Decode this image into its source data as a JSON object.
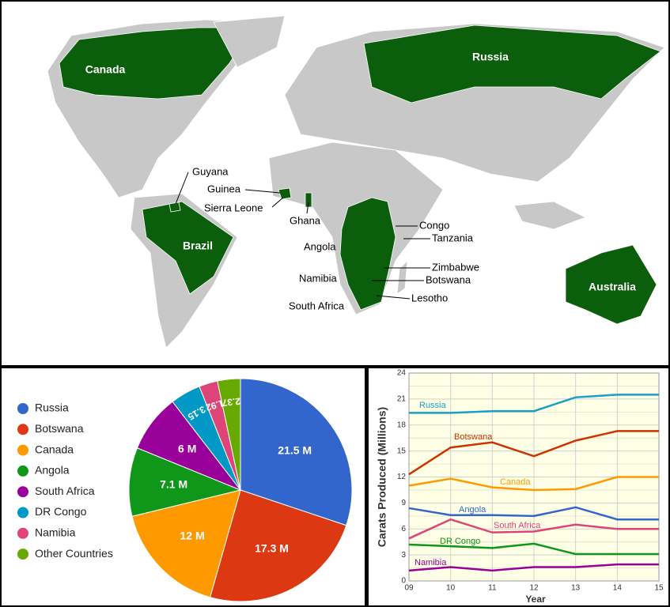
{
  "map": {
    "labels": [
      "Canada",
      "Russia",
      "Guyana",
      "Guinea",
      "Sierra Leone",
      "Ghana",
      "Brazil",
      "Congo",
      "Tanzania",
      "Angola",
      "Zimbabwe",
      "Namibia",
      "Botswana",
      "South Africa",
      "Lesotho",
      "Australia"
    ]
  },
  "chart_data": [
    {
      "type": "pie",
      "categories": [
        "Russia",
        "Botswana",
        "Canada",
        "Angola",
        "South Africa",
        "DR Congo",
        "Namibia",
        "Other Countries"
      ],
      "values": [
        21.5,
        17.3,
        12,
        7.1,
        6,
        3.15,
        1.92,
        2.37
      ],
      "value_labels": [
        "21.5 M",
        "17.3 M",
        "12 M",
        "7.1 M",
        "6 M",
        "3.15",
        "1.92",
        "2.37"
      ],
      "colors": [
        "#3366cc",
        "#dc3912",
        "#ff9900",
        "#109618",
        "#990099",
        "#0099c6",
        "#dd4477",
        "#66aa00"
      ],
      "legend": "left"
    },
    {
      "type": "line",
      "categories": [
        "09",
        "10",
        "11",
        "12",
        "13",
        "14",
        "15"
      ],
      "y_label": "Carats Produced (Millions)",
      "x_label": "Year",
      "ylim": [
        0,
        24
      ],
      "yticks": [
        0,
        3,
        6,
        9,
        12,
        15,
        18,
        21,
        24
      ],
      "grid": true,
      "series": [
        {
          "name": "Russia",
          "color": "#1a9fc8",
          "values": [
            19.4,
            19.4,
            19.6,
            19.6,
            21.2,
            21.5,
            21.5
          ]
        },
        {
          "name": "Botswana",
          "color": "#cc3300",
          "values": [
            12.3,
            15.4,
            16.0,
            14.4,
            16.2,
            17.3,
            17.3
          ]
        },
        {
          "name": "Canada",
          "color": "#ff9900",
          "values": [
            11.0,
            11.8,
            10.8,
            10.5,
            10.6,
            12.0,
            12.0
          ]
        },
        {
          "name": "Angola",
          "color": "#3366cc",
          "values": [
            8.4,
            7.6,
            7.6,
            7.5,
            8.5,
            7.1,
            7.1
          ]
        },
        {
          "name": "South Africa",
          "color": "#dd4477",
          "values": [
            4.9,
            7.1,
            5.6,
            5.7,
            6.5,
            6.0,
            6.0
          ]
        },
        {
          "name": "DR Congo",
          "color": "#109618",
          "values": [
            4.2,
            4.0,
            3.8,
            4.3,
            3.1,
            3.1,
            3.1
          ]
        },
        {
          "name": "Namibia",
          "color": "#990099",
          "values": [
            1.2,
            1.6,
            1.2,
            1.6,
            1.6,
            1.9,
            1.9
          ]
        }
      ]
    }
  ]
}
